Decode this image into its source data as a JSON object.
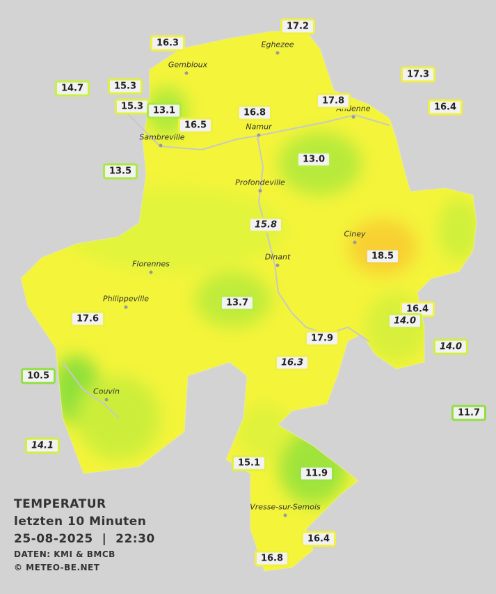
{
  "legend": {
    "lines": [
      "TEMPERATUR",
      "letzten 10 Minuten",
      "25-08-2025  |  22:30"
    ],
    "credits": [
      "DATEN: KMI & BMCB",
      "© METEO-BE.NET"
    ]
  },
  "cities": [
    "Eghezee",
    "Gembloux",
    "Andenne",
    "Namur",
    "Sambreville",
    "Profondeville",
    "Ciney",
    "Dinant",
    "Florennes",
    "Philippeville",
    "Couvin",
    "Vresse-sur-Semois"
  ],
  "stations": [
    {
      "label": "17.2",
      "border": "#f0f040"
    },
    {
      "label": "16.3",
      "border": "#f0f040"
    },
    {
      "label": "17.3",
      "border": "#f0f040"
    },
    {
      "label": "14.7",
      "border": "#c8f040"
    },
    {
      "label": "15.3",
      "border": "#e0f040"
    },
    {
      "label": "17.8",
      "border": "#f0f040"
    },
    {
      "label": "16.4",
      "border": "#f0f040"
    },
    {
      "label": "15.3",
      "border": "#e0f040"
    },
    {
      "label": "13.1",
      "border": "#a8ea40"
    },
    {
      "label": "16.8",
      "border": "#f0f040"
    },
    {
      "label": "16.5",
      "border": "#f0f040"
    },
    {
      "label": "13.0",
      "border": "#b8ec40"
    },
    {
      "label": "13.5",
      "border": "#a8ea40"
    },
    {
      "label": "15.8",
      "border": "#e8f040",
      "italic": true
    },
    {
      "label": "18.5",
      "border": "#f4d040"
    },
    {
      "label": "13.7",
      "border": "#b8ec40"
    },
    {
      "label": "16.4",
      "border": "#f0f040"
    },
    {
      "label": "14.0",
      "border": "#d0f040",
      "italic": true
    },
    {
      "label": "17.6",
      "border": "#f0f040"
    },
    {
      "label": "14.0",
      "border": "#d0f040",
      "italic": true
    },
    {
      "label": "17.9",
      "border": "#f0f040"
    },
    {
      "label": "16.3",
      "border": "#f0f040",
      "italic": true
    },
    {
      "label": "10.5",
      "border": "#90e040"
    },
    {
      "label": "11.7",
      "border": "#90e040"
    },
    {
      "label": "14.1",
      "border": "#d0f040",
      "italic": true
    },
    {
      "label": "15.1",
      "border": "#e0f040"
    },
    {
      "label": "11.9",
      "border": "#98e440"
    },
    {
      "label": "16.4",
      "border": "#f0f040"
    },
    {
      "label": "16.8",
      "border": "#f0f040"
    }
  ]
}
